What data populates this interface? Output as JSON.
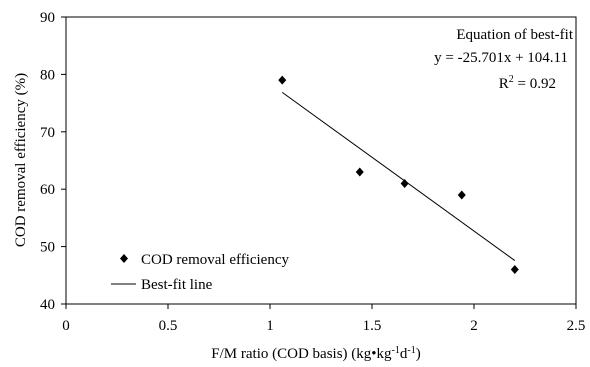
{
  "chart_data": {
    "type": "scatter",
    "xlabel": "F/M ratio (COD basis) (kg•kg⁻¹d⁻¹)",
    "ylabel": "COD removal efficiency (%)",
    "xlim": [
      0,
      2.5
    ],
    "ylim": [
      40,
      90
    ],
    "xticks": [
      "0",
      "0.5",
      "1",
      "1.5",
      "2",
      "2.5"
    ],
    "yticks": [
      "40",
      "50",
      "60",
      "70",
      "80",
      "90"
    ],
    "grid": false,
    "legend_position": "bottom-left",
    "series": [
      {
        "name": "COD removal efficiency",
        "marker": "diamond",
        "color": "#000000",
        "points": [
          {
            "x": 1.06,
            "y": 79
          },
          {
            "x": 1.44,
            "y": 63
          },
          {
            "x": 1.66,
            "y": 61
          },
          {
            "x": 1.94,
            "y": 59
          },
          {
            "x": 2.2,
            "y": 46
          }
        ]
      },
      {
        "name": "Best-fit line",
        "type": "line",
        "color": "#000000",
        "slope": -25.701,
        "intercept": 104.11,
        "x_range": [
          1.06,
          2.2
        ]
      }
    ],
    "annotations": {
      "equation_title": "Equation of best-fit",
      "equation": "y = -25.701x + 104.11",
      "r_squared_prefix": "R",
      "r_squared_sup": "2",
      "r_squared_value": " = 0.92"
    }
  }
}
